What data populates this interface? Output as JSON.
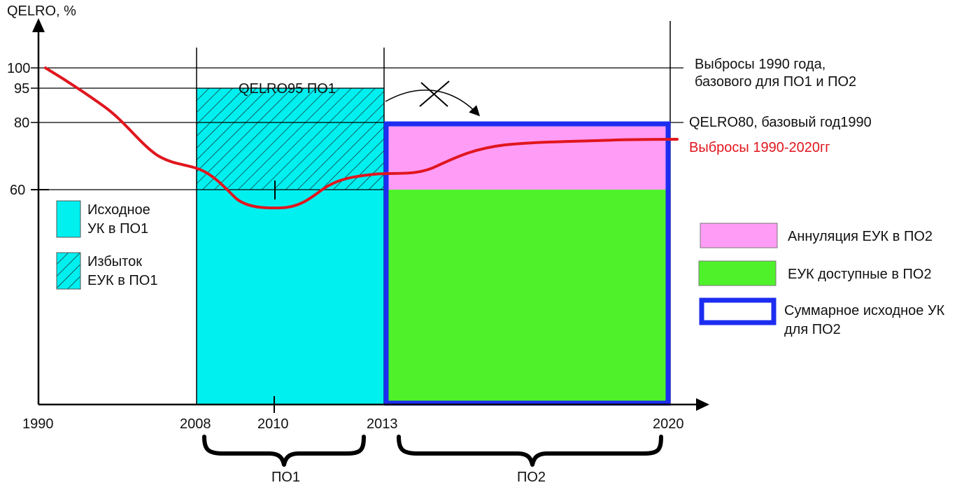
{
  "figure": {
    "y_axis_label": "QELRO, %",
    "y_ticks": [
      "100",
      "95",
      "80",
      "60"
    ],
    "x_ticks": [
      "1990",
      "2008",
      "2010",
      "2013",
      "2020"
    ],
    "periods": {
      "p1": "ПО1",
      "p2": "ПО2"
    },
    "annotations": {
      "qelro95": "QELRO95 ПО1",
      "emissions_1990_line1": "Выбросы 1990 года,",
      "emissions_1990_line2": "базового для ПО1 и ПО2",
      "qelro80": "QELRO80, базовый год1990",
      "emissions_series": "Выбросы 1990-2020гг"
    },
    "legend_left": {
      "initial_line1": "Исходное",
      "initial_line2": "УК в ПО1",
      "surplus_line1": "Избыток",
      "surplus_line2": "ЕУК в ПО1"
    },
    "legend_right": {
      "cancel": "Аннуляция ЕУК в ПО2",
      "available": "ЕУК доступные в ПО2",
      "total_line1": "Суммарное исходное УК",
      "total_line2": "для ПО2"
    },
    "colors": {
      "initial_aau": "#00f0f0",
      "hatch": "#1a1a1a",
      "cancel": "#ff9cf6",
      "available": "#4ff22a",
      "total_border": "#1d2df0",
      "emissions": "#e0161e",
      "axis": "#000000"
    }
  }
}
